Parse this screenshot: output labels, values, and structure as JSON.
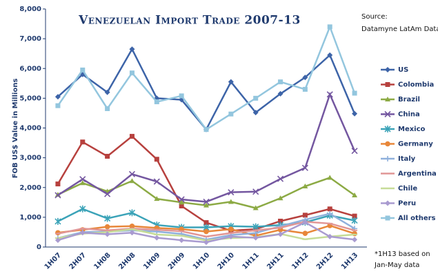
{
  "chart_data": {
    "type": "line",
    "title": "Venezuelan Import Trade 2007-13",
    "source": [
      "Source:",
      "Datamyne LatAm Data"
    ],
    "y_label": "FOB US$ Value in Millions",
    "footnote": [
      "*1H13 based on",
      "Jan-May data"
    ],
    "categories": [
      "1H07",
      "2H07",
      "1H08",
      "2H08",
      "1H09",
      "2H09",
      "1H10",
      "2H10",
      "1H11",
      "2H11",
      "1H12",
      "2H12",
      "1H13"
    ],
    "ylim": [
      0,
      8000
    ],
    "yticks": [
      0,
      {
        "value": 1000,
        "label": "1,000"
      },
      {
        "value": 2000,
        "label": "2,000"
      },
      {
        "value": 3000,
        "label": "3,000"
      },
      {
        "value": 4000,
        "label": "4,000"
      },
      {
        "value": 5000,
        "label": "5,000"
      },
      {
        "value": 6000,
        "label": "6,000"
      },
      {
        "value": 7000,
        "label": "7,000"
      },
      {
        "value": 8000,
        "label": "8,000"
      }
    ],
    "grid": false,
    "legend": "right",
    "series": [
      {
        "name": "US",
        "color": "#3d64a8",
        "marker": "diamond",
        "values": [
          5050,
          5800,
          5200,
          6650,
          5000,
          4950,
          3950,
          5550,
          4520,
          5150,
          5700,
          6450,
          4480
        ]
      },
      {
        "name": "Colombia",
        "color": "#b7413e",
        "marker": "square",
        "values": [
          2120,
          3530,
          3050,
          3720,
          2950,
          1380,
          820,
          550,
          600,
          870,
          1070,
          1280,
          1040
        ]
      },
      {
        "name": "Brazil",
        "color": "#8caa44",
        "marker": "triangle",
        "values": [
          1760,
          2150,
          1870,
          2220,
          1620,
          1500,
          1400,
          1520,
          1310,
          1640,
          2040,
          2330,
          1740
        ]
      },
      {
        "name": "China",
        "color": "#7457a0",
        "marker": "x",
        "values": [
          1740,
          2280,
          1780,
          2450,
          2200,
          1600,
          1520,
          1840,
          1860,
          2290,
          2660,
          5130,
          3230
        ]
      },
      {
        "name": "Mexico",
        "color": "#3ba3b8",
        "marker": "star",
        "values": [
          860,
          1280,
          960,
          1150,
          740,
          660,
          660,
          700,
          680,
          740,
          830,
          1060,
          890
        ]
      },
      {
        "name": "Germany",
        "color": "#e8873a",
        "marker": "circle",
        "values": [
          480,
          580,
          680,
          700,
          640,
          600,
          520,
          600,
          380,
          580,
          460,
          720,
          450
        ]
      },
      {
        "name": "Italy",
        "color": "#8fb0dc",
        "marker": "plus",
        "values": [
          300,
          500,
          520,
          560,
          520,
          440,
          250,
          400,
          470,
          700,
          920,
          1120,
          620
        ]
      },
      {
        "name": "Argentina",
        "color": "#e19695",
        "marker": "dash",
        "values": [
          450,
          620,
          560,
          620,
          580,
          530,
          350,
          470,
          560,
          650,
          850,
          790,
          560
        ]
      },
      {
        "name": "Chile",
        "color": "#c6dc98",
        "marker": "dash",
        "values": [
          300,
          450,
          500,
          600,
          420,
          380,
          220,
          300,
          330,
          440,
          260,
          350,
          420
        ]
      },
      {
        "name": "Peru",
        "color": "#a99bd0",
        "marker": "diamond",
        "values": [
          230,
          480,
          430,
          480,
          310,
          230,
          160,
          350,
          310,
          430,
          830,
          350,
          250
        ]
      },
      {
        "name": "All others",
        "color": "#93c6de",
        "marker": "square",
        "values": [
          4750,
          5950,
          4650,
          5850,
          4880,
          5080,
          3950,
          4470,
          5000,
          5550,
          5300,
          7400,
          5170
        ]
      }
    ]
  }
}
